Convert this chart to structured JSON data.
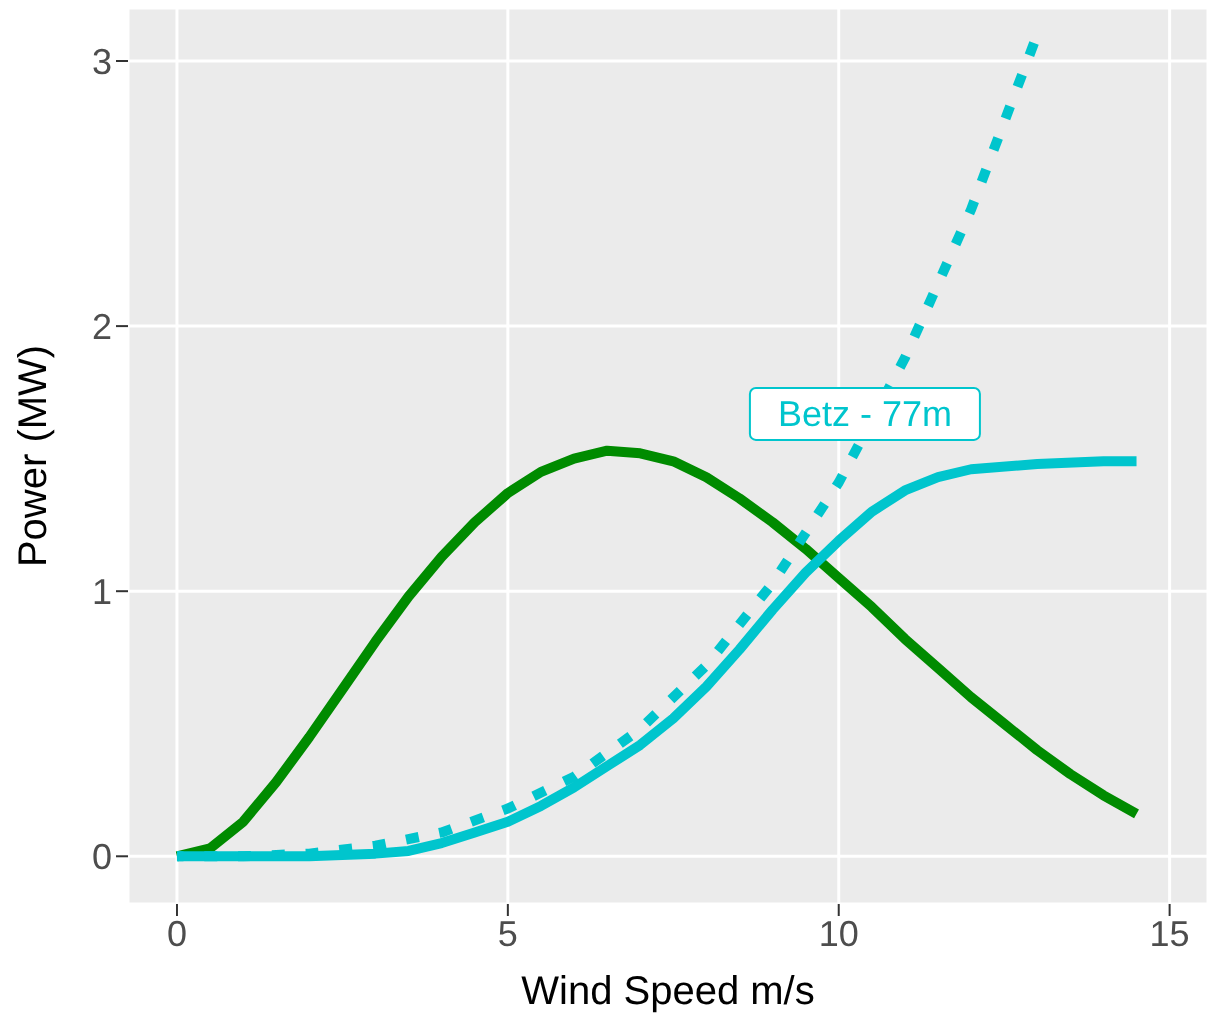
{
  "chart_data": {
    "type": "line",
    "xlabel": "Wind Speed m/s",
    "ylabel": "Power (MW)",
    "xlim": [
      -0.74,
      15.58
    ],
    "xticks": [
      0,
      5,
      10,
      15
    ],
    "ylim": [
      -0.18,
      3.2
    ],
    "yticks": [
      0,
      1,
      2,
      3
    ],
    "grid": true,
    "series": [
      {
        "color": "#008b00",
        "line_style": "solid",
        "x": [
          0,
          0.5,
          1,
          1.5,
          2,
          2.5,
          3,
          3.5,
          4,
          4.5,
          5,
          5.5,
          6,
          6.5,
          7,
          7.5,
          8,
          8.5,
          9,
          9.5,
          10,
          10.5,
          11,
          11.5,
          12,
          12.5,
          13,
          13.5,
          14,
          14.5
        ],
        "values": [
          0,
          0.03,
          0.13,
          0.28,
          0.45,
          0.63,
          0.81,
          0.98,
          1.13,
          1.26,
          1.37,
          1.45,
          1.5,
          1.53,
          1.52,
          1.49,
          1.43,
          1.35,
          1.26,
          1.16,
          1.05,
          0.94,
          0.82,
          0.71,
          0.6,
          0.5,
          0.4,
          0.31,
          0.23,
          0.16
        ]
      },
      {
        "color": "#00c5cd",
        "line_style": "solid",
        "x": [
          0,
          1,
          2,
          3,
          3.5,
          4,
          4.5,
          5,
          5.5,
          6,
          6.5,
          7,
          7.5,
          8,
          8.5,
          9,
          9.5,
          10,
          10.5,
          11,
          11.5,
          12,
          13,
          14,
          14.5
        ],
        "values": [
          0,
          0,
          0,
          0.01,
          0.02,
          0.05,
          0.09,
          0.13,
          0.19,
          0.26,
          0.34,
          0.42,
          0.52,
          0.64,
          0.78,
          0.93,
          1.07,
          1.19,
          1.3,
          1.38,
          1.43,
          1.46,
          1.48,
          1.49,
          1.49
        ]
      },
      {
        "name": "Betz - 77m",
        "color": "#00c5cd",
        "line_style": "dotted",
        "x": [
          0,
          1,
          2,
          3,
          4,
          5,
          6,
          7,
          8,
          9,
          10,
          11,
          12,
          13
        ],
        "values": [
          0,
          0,
          0.01,
          0.04,
          0.09,
          0.18,
          0.3,
          0.48,
          0.72,
          1.03,
          1.41,
          1.88,
          2.44,
          3.1
        ]
      }
    ]
  }
}
